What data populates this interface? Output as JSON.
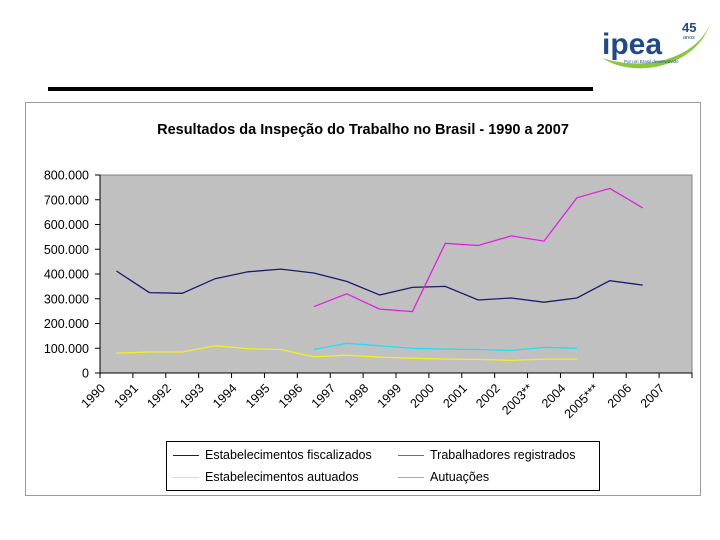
{
  "logo": {
    "wordmark": "ipea",
    "badge": "45",
    "badge_sub": "anos",
    "tagline": "Por um Brasil desenvolvido"
  },
  "colors": {
    "plot_bg": "#c0c0c0",
    "series": [
      "#1a1a6e",
      "#e020e0",
      "#f0f020",
      "#20e0f0"
    ],
    "logo_blue": "#1e4a8c",
    "logo_green": "#8cc63f"
  },
  "chart_data": {
    "type": "line",
    "title": "Resultados da Inspeção do Trabalho no Brasil - 1990 a 2007",
    "categories": [
      "1990",
      "1991",
      "1992",
      "1993",
      "1994",
      "1995",
      "1996",
      "1997",
      "1998",
      "1999",
      "2000",
      "2001",
      "2002",
      "2003**",
      "2004",
      "2005***",
      "2006",
      "2007"
    ],
    "ylim": [
      0,
      800000
    ],
    "y_ticks": [
      0,
      100000,
      200000,
      300000,
      400000,
      500000,
      600000,
      700000,
      800000
    ],
    "y_tick_labels": [
      "0",
      "100.000",
      "200.000",
      "300.000",
      "400.000",
      "500.000",
      "600.000",
      "700.000",
      "800.000"
    ],
    "series": [
      {
        "name": "Estabelecimentos fiscalizados",
        "values": [
          412000,
          325000,
          322000,
          381000,
          409000,
          420000,
          404000,
          370000,
          315000,
          346000,
          350000,
          295000,
          303000,
          286000,
          303000,
          373000,
          355000,
          null
        ]
      },
      {
        "name": "Trabalhadores registrados",
        "values": [
          null,
          null,
          null,
          null,
          null,
          null,
          268000,
          320000,
          258000,
          248000,
          524000,
          515000,
          554000,
          533000,
          708000,
          746000,
          667000,
          null
        ]
      },
      {
        "name": "Estabelecimentos autuados",
        "values": [
          80000,
          85000,
          85000,
          110000,
          98000,
          95000,
          65000,
          72000,
          64000,
          60000,
          56000,
          55000,
          51000,
          56000,
          56000,
          null,
          null,
          null
        ]
      },
      {
        "name": "Autuações",
        "values": [
          null,
          null,
          null,
          null,
          null,
          null,
          95000,
          120000,
          110000,
          100000,
          96000,
          95000,
          91000,
          104000,
          100000,
          null,
          null,
          null
        ]
      }
    ],
    "legend_position": "bottom"
  }
}
